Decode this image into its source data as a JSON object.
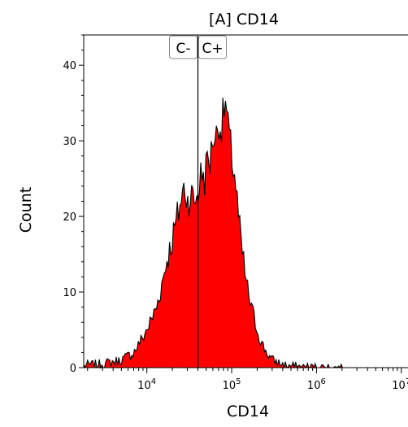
{
  "chart_data": {
    "type": "area",
    "title": "[A] CD14",
    "xlabel": "CD14",
    "ylabel": "Count",
    "x_scale": "log",
    "xlim": [
      1800,
      12000000
    ],
    "ylim": [
      0,
      44
    ],
    "y_ticks": [
      0,
      10,
      20,
      30,
      40
    ],
    "x_ticks": [
      {
        "value": 10000,
        "base": "10",
        "exp": "4"
      },
      {
        "value": 100000,
        "base": "10",
        "exp": "5"
      },
      {
        "value": 1000000,
        "base": "10",
        "exp": "6"
      },
      {
        "value": 10000000,
        "base": "10",
        "exp": "7"
      }
    ],
    "fill_color": "#ff0000",
    "line_color": "#000000",
    "grid": false,
    "gate": {
      "threshold": 40000,
      "left_label": "C-",
      "right_label": "C+"
    },
    "series": [
      {
        "x": [
          1800,
          3000,
          5000,
          7000,
          9000,
          11000,
          13000,
          15000,
          17000,
          19000,
          21000,
          23000,
          25000,
          28000,
          30000,
          33000,
          36000,
          40000,
          44000,
          48000,
          52000,
          56000,
          60000,
          65000,
          70000,
          75000,
          80000,
          85000,
          90000,
          95000,
          100000,
          110000,
          120000,
          130000,
          150000,
          170000,
          200000,
          230000,
          260000,
          300000,
          350000,
          400000,
          500000,
          700000,
          1000000,
          2000000,
          12000000
        ],
        "values": [
          0.3,
          0.5,
          1,
          2,
          4,
          6,
          8,
          11,
          14,
          16,
          18,
          20,
          22,
          24,
          22,
          23,
          22,
          23,
          26,
          25,
          28,
          27,
          31,
          30,
          33,
          31,
          34,
          35,
          32,
          30,
          28,
          25,
          20,
          16,
          11,
          8,
          5,
          3,
          2,
          1,
          0.7,
          0.4,
          0.2,
          0.1,
          0.05,
          0,
          0
        ]
      }
    ]
  }
}
